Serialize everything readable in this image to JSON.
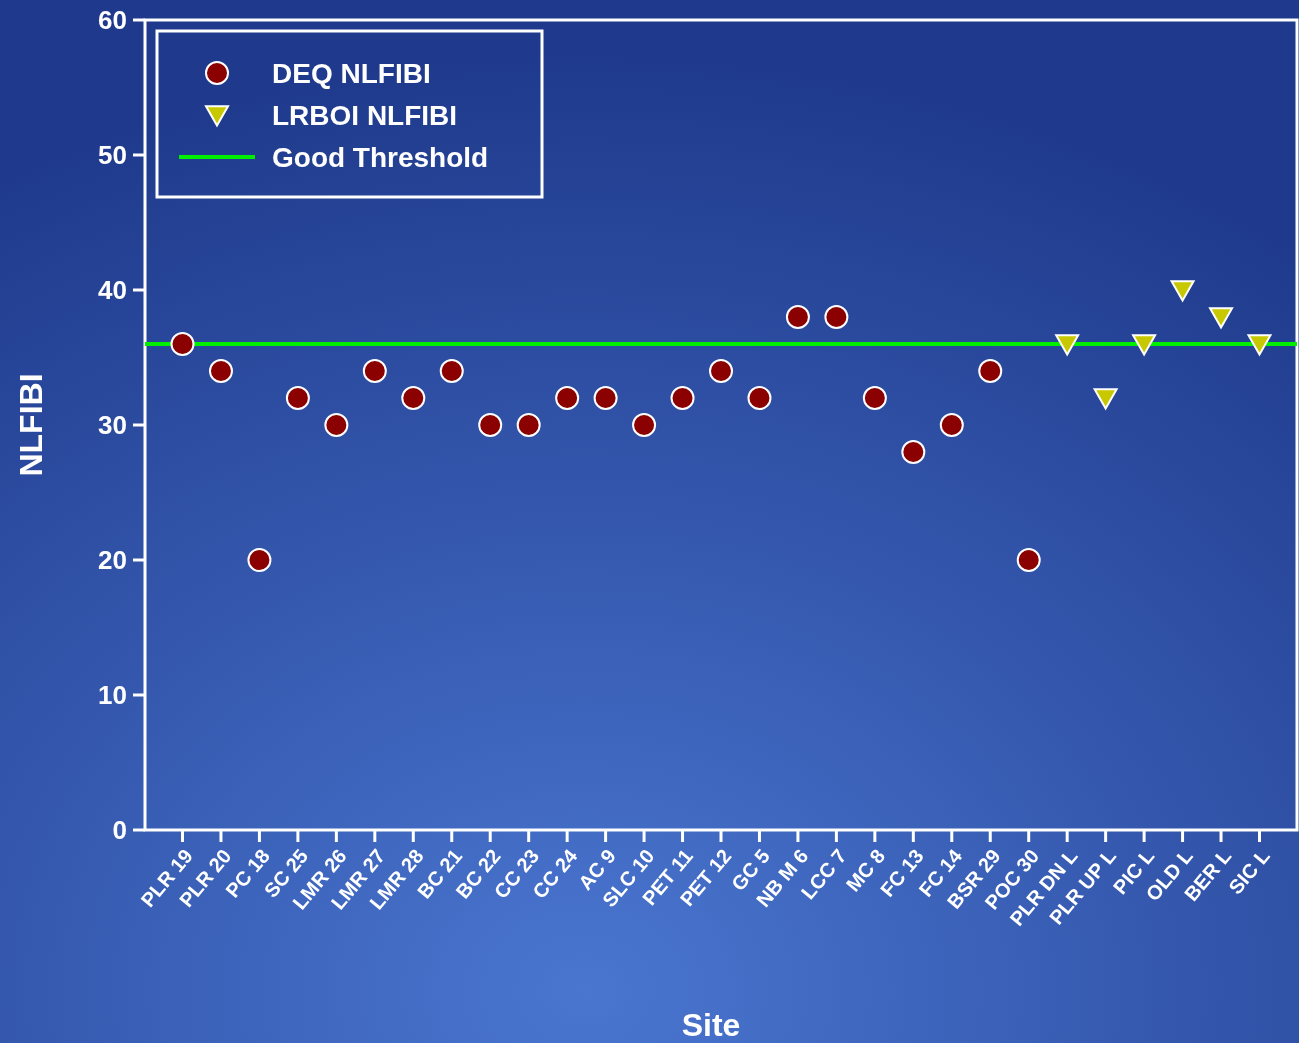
{
  "chart_data": {
    "type": "scatter",
    "xlabel": "Site",
    "ylabel": "NLFIBI",
    "categories": [
      "PLR 19",
      "PLR 20",
      "PC 18",
      "SC 25",
      "LMR 26",
      "LMR 27",
      "LMR 28",
      "BC 21",
      "BC 22",
      "CC 23",
      "CC 24",
      "AC 9",
      "SLC 10",
      "PET 11",
      "PET 12",
      "GC 5",
      "NB M 6",
      "LCC 7",
      "MC 8",
      "FC 13",
      "FC 14",
      "BSR 29",
      "POC 30",
      "PLR DN L",
      "PLR UP L",
      "PIC L",
      "OLD L",
      "BER L",
      "SIC L"
    ],
    "series": [
      {
        "name": "DEQ NLFIBI",
        "color": "#8b0000",
        "marker": "circle",
        "values": [
          36,
          34,
          20,
          32,
          30,
          34,
          32,
          34,
          30,
          30,
          32,
          32,
          30,
          32,
          34,
          32,
          38,
          38,
          32,
          28,
          30,
          34,
          20,
          null,
          null,
          null,
          null,
          null,
          null
        ]
      },
      {
        "name": "LRBOI NLFIBI",
        "color": "#c8c800",
        "marker": "triangle",
        "values": [
          null,
          null,
          null,
          null,
          null,
          null,
          null,
          null,
          null,
          null,
          null,
          null,
          null,
          null,
          null,
          null,
          null,
          null,
          null,
          null,
          null,
          null,
          null,
          36,
          32,
          36,
          40,
          38,
          36
        ]
      }
    ],
    "ref_lines": [
      {
        "axis": "y",
        "value": 36,
        "label": "Good Threshold",
        "color": "#00ee00",
        "line_style": "solid"
      }
    ],
    "ylim": [
      0,
      60
    ],
    "yticks": [
      0,
      10,
      20,
      30,
      40,
      50,
      60
    ],
    "grid": false,
    "legend": "top left"
  }
}
